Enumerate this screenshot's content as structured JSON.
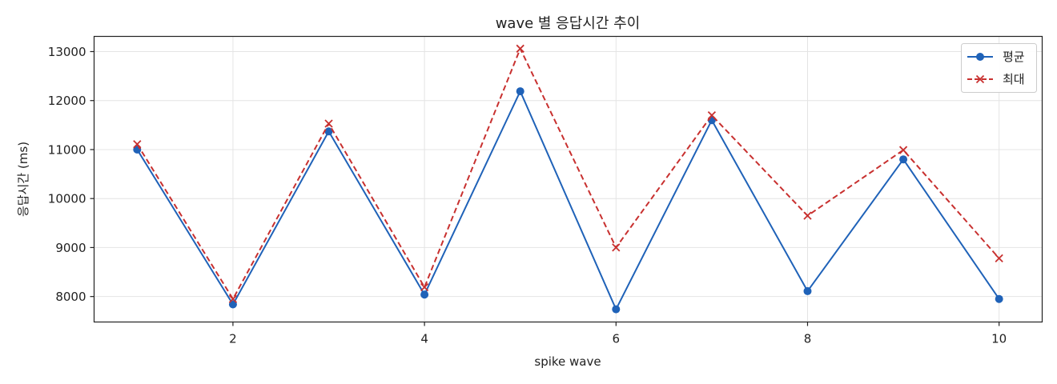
{
  "chart_data": {
    "type": "line",
    "title": "wave 별 응답시간 추이",
    "xlabel": "spike wave",
    "ylabel": "응답시간 (ms)",
    "x": [
      1,
      2,
      3,
      4,
      5,
      6,
      7,
      8,
      9,
      10
    ],
    "xlim": [
      0.55,
      10.45
    ],
    "ylim": [
      7480,
      13310
    ],
    "xticks": [
      2,
      4,
      6,
      8,
      10
    ],
    "xtick_labels": [
      "2",
      "4",
      "6",
      "8",
      "10"
    ],
    "yticks": [
      8000,
      9000,
      10000,
      11000,
      12000,
      13000
    ],
    "ytick_labels": [
      "8000",
      "9000",
      "10000",
      "11000",
      "12000",
      "13000"
    ],
    "grid": true,
    "legend_position": "top-right",
    "series": [
      {
        "name": "평균",
        "values": [
          11000,
          7840,
          11370,
          8040,
          12190,
          7740,
          11600,
          8110,
          10800,
          7950
        ],
        "color": "#1f62b8",
        "linestyle": "solid",
        "marker": "circle"
      },
      {
        "name": "최대",
        "values": [
          11110,
          7950,
          11530,
          8190,
          13060,
          9000,
          11700,
          9650,
          10990,
          8780
        ],
        "color": "#c8302f",
        "linestyle": "dashed",
        "marker": "x"
      }
    ]
  }
}
